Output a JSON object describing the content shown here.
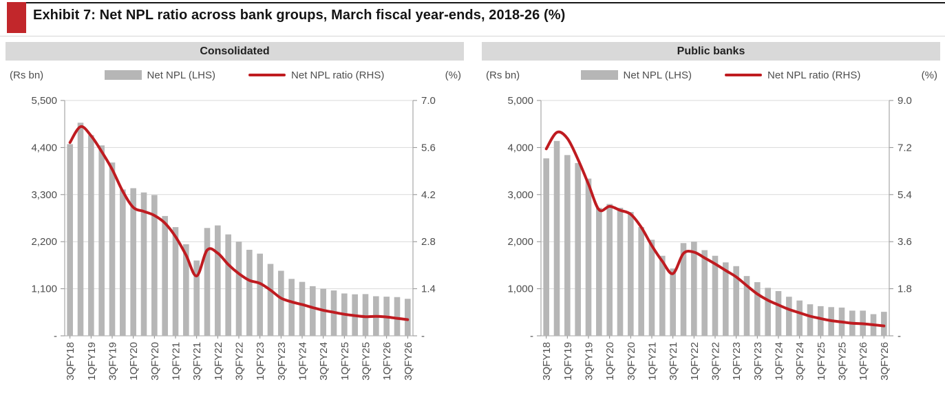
{
  "page": {
    "title": "Exhibit 7: Net NPL ratio across bank groups, March fiscal year-ends, 2018-26 (%)"
  },
  "colors": {
    "accent_red": "#c2272b",
    "line_red": "#bf1b20",
    "bar_gray": "#b6b6b6",
    "header_band": "#d9d9d9",
    "grid": "#d9d9d9",
    "axis_line": "#a6a6a6",
    "tick": "#8c8c8c",
    "axis_text": "#4d4d4d"
  },
  "chart_data": [
    {
      "type": "bar",
      "panel": "Consolidated",
      "unit_left": "(Rs bn)",
      "unit_right": "(%)",
      "legend": [
        "Net NPL (LHS)",
        "Net NPL ratio (RHS)"
      ],
      "y_left": {
        "max": 5500,
        "tick_labels": [
          "5,500",
          "4,400",
          "3,300",
          "2,200",
          "1,100",
          "-"
        ]
      },
      "y_right": {
        "max": 7.0,
        "tick_labels": [
          "7.0",
          "5.6",
          "4.2",
          "2.8",
          "1.4",
          "-"
        ]
      },
      "x_tick_labels": [
        "3QFY18",
        "1QFY19",
        "3QFY19",
        "1QFY20",
        "3QFY20",
        "1QFY21",
        "3QFY21",
        "1QFY22",
        "3QFY22",
        "1QFY23",
        "3QFY23",
        "1QFY24",
        "3QFY24",
        "1QFY25",
        "3QFY25",
        "1QFY26",
        "3QFY26"
      ],
      "categories": [
        "3QFY18",
        "4QFY18",
        "1QFY19",
        "2QFY19",
        "3QFY19",
        "4QFY19",
        "1QFY20",
        "2QFY20",
        "3QFY20",
        "4QFY20",
        "1QFY21",
        "2QFY21",
        "3QFY21",
        "4QFY21",
        "1QFY22",
        "2QFY22",
        "3QFY22",
        "4QFY22",
        "1QFY23",
        "2QFY23",
        "3QFY23",
        "4QFY23",
        "1QFY24",
        "2QFY24",
        "3QFY24",
        "4QFY24",
        "1QFY25",
        "2QFY25",
        "3QFY25",
        "4QFY25",
        "1QFY26",
        "2QFY26",
        "3QFY26"
      ],
      "series": [
        {
          "name": "Net NPL (LHS)",
          "kind": "bar",
          "axis": "left",
          "values": [
            4480,
            4980,
            4690,
            4450,
            4050,
            3420,
            3450,
            3350,
            3290,
            2800,
            2540,
            2140,
            1760,
            2520,
            2580,
            2370,
            2200,
            2010,
            1920,
            1680,
            1520,
            1330,
            1260,
            1160,
            1100,
            1060,
            990,
            970,
            975,
            925,
            915,
            905,
            865
          ]
        },
        {
          "name": "Net NPL ratio (RHS)",
          "kind": "line",
          "axis": "right",
          "values": [
            5.75,
            6.22,
            5.95,
            5.48,
            4.95,
            4.3,
            3.82,
            3.7,
            3.58,
            3.35,
            2.95,
            2.4,
            1.78,
            2.55,
            2.46,
            2.12,
            1.85,
            1.65,
            1.56,
            1.36,
            1.12,
            1.01,
            0.93,
            0.84,
            0.76,
            0.7,
            0.64,
            0.6,
            0.57,
            0.58,
            0.56,
            0.52,
            0.48
          ]
        }
      ]
    },
    {
      "type": "bar",
      "panel": "Public banks",
      "unit_left": "(Rs bn)",
      "unit_right": "(%)",
      "legend": [
        "Net NPL (LHS)",
        "Net NPL ratio (RHS)"
      ],
      "y_left": {
        "max": 5000,
        "tick_labels": [
          "5,000",
          "4,000",
          "3,000",
          "2,000",
          "1,000",
          "-"
        ]
      },
      "y_right": {
        "max": 9.0,
        "tick_labels": [
          "9.0",
          "7.2",
          "5.4",
          "3.6",
          "1.8",
          "-"
        ]
      },
      "x_tick_labels": [
        "3QFY18",
        "1QFY19",
        "3QFY19",
        "1QFY20",
        "3QFY20",
        "1QFY21",
        "3QFY21",
        "1QFY22",
        "3QFY22",
        "1QFY23",
        "3QFY23",
        "1QFY24",
        "3QFY24",
        "1QFY25",
        "3QFY25",
        "1QFY26",
        "3QFY26"
      ],
      "categories": [
        "3QFY18",
        "4QFY18",
        "1QFY19",
        "2QFY19",
        "3QFY19",
        "4QFY19",
        "1QFY20",
        "2QFY20",
        "3QFY20",
        "4QFY20",
        "1QFY21",
        "2QFY21",
        "3QFY21",
        "4QFY21",
        "1QFY22",
        "2QFY22",
        "3QFY22",
        "4QFY22",
        "1QFY23",
        "2QFY23",
        "3QFY23",
        "4QFY23",
        "1QFY24",
        "2QFY24",
        "3QFY24",
        "4QFY24",
        "1QFY25",
        "2QFY25",
        "3QFY25",
        "4QFY25",
        "1QFY26",
        "2QFY26",
        "3QFY26"
      ],
      "series": [
        {
          "name": "Net NPL (LHS)",
          "kind": "bar",
          "axis": "left",
          "values": [
            3770,
            4140,
            3840,
            3670,
            3340,
            2720,
            2800,
            2720,
            2630,
            2310,
            2040,
            1700,
            1430,
            1970,
            2000,
            1820,
            1700,
            1560,
            1480,
            1270,
            1140,
            1020,
            950,
            830,
            750,
            670,
            630,
            610,
            600,
            535,
            535,
            460,
            510
          ]
        },
        {
          "name": "Net NPL ratio (RHS)",
          "kind": "line",
          "axis": "right",
          "values": [
            7.15,
            7.78,
            7.55,
            6.75,
            5.8,
            4.82,
            4.95,
            4.8,
            4.65,
            4.15,
            3.45,
            2.85,
            2.38,
            3.15,
            3.2,
            2.98,
            2.75,
            2.5,
            2.25,
            1.92,
            1.6,
            1.36,
            1.18,
            1.01,
            0.88,
            0.75,
            0.66,
            0.58,
            0.53,
            0.48,
            0.46,
            0.42,
            0.38
          ]
        }
      ]
    }
  ]
}
